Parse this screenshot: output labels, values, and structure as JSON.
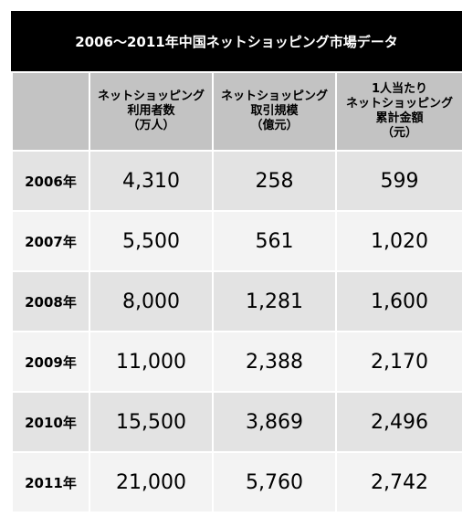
{
  "title": "2006～2011年中国ネットショッピング市場データ",
  "table": {
    "columns": [
      [
        "ネットショッピング",
        "利用者数",
        "（万人）"
      ],
      [
        "ネットショッピング",
        "取引規模",
        "（億元）"
      ],
      [
        "1人当たり",
        "ネットショッピング",
        "累計金額",
        "（元）"
      ]
    ],
    "rows": [
      [
        "2006年",
        "4,310",
        "258",
        "599"
      ],
      [
        "2007年",
        "5,500",
        "561",
        "1,020"
      ],
      [
        "2008年",
        "8,000",
        "1,281",
        "1,600"
      ],
      [
        "2009年",
        "11,000",
        "2,388",
        "2,170"
      ],
      [
        "2010年",
        "15,500",
        "3,869",
        "2,496"
      ],
      [
        "2011年",
        "21,000",
        "5,760",
        "2,742"
      ]
    ]
  }
}
